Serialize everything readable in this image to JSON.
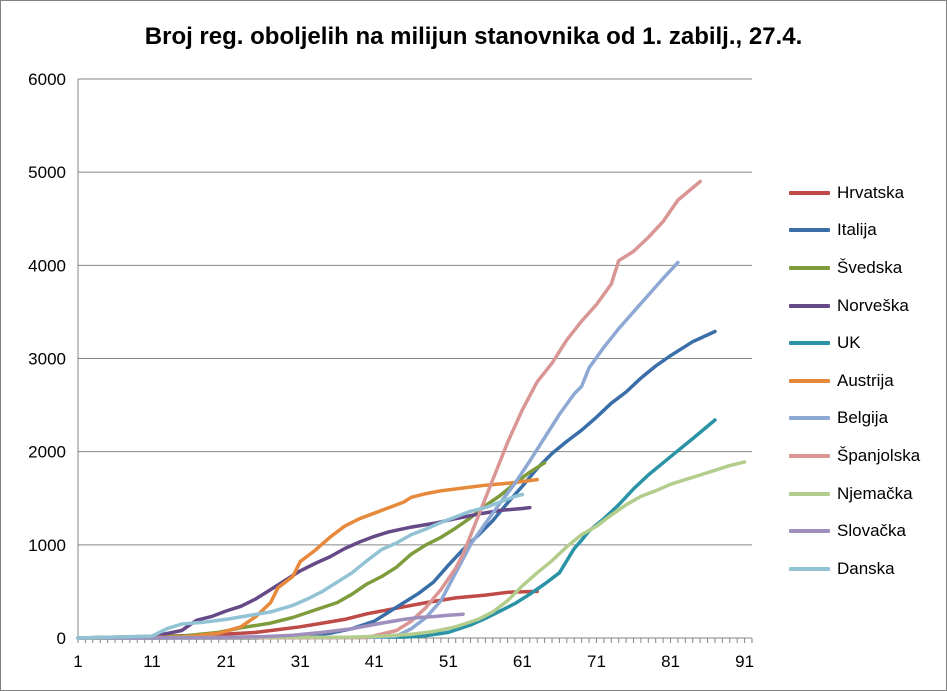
{
  "chart_data": {
    "type": "line",
    "title": "Broj reg. oboljelih na milijun stanovnika od 1. zabilj., 27.4.",
    "xlabel": "",
    "ylabel": "",
    "xlim": [
      1,
      92
    ],
    "ylim": [
      0,
      6000
    ],
    "x_ticks": [
      1,
      11,
      21,
      31,
      41,
      51,
      61,
      71,
      81,
      91
    ],
    "y_ticks": [
      0,
      1000,
      2000,
      3000,
      4000,
      5000,
      6000
    ],
    "grid": "horizontal",
    "legend_position": "right",
    "series": [
      {
        "name": "Hrvatska",
        "color": "#be4b48",
        "points": [
          [
            1,
            0
          ],
          [
            18,
            30
          ],
          [
            25,
            60
          ],
          [
            28,
            90
          ],
          [
            31,
            120
          ],
          [
            34,
            160
          ],
          [
            37,
            200
          ],
          [
            40,
            260
          ],
          [
            44,
            320
          ],
          [
            48,
            380
          ],
          [
            52,
            430
          ],
          [
            56,
            460
          ],
          [
            59,
            490
          ],
          [
            63,
            500
          ]
        ]
      },
      {
        "name": "Italija",
        "color": "#3a6ea8",
        "points": [
          [
            1,
            0
          ],
          [
            25,
            0
          ],
          [
            31,
            20
          ],
          [
            35,
            50
          ],
          [
            38,
            100
          ],
          [
            41,
            180
          ],
          [
            43,
            280
          ],
          [
            45,
            380
          ],
          [
            47,
            480
          ],
          [
            49,
            600
          ],
          [
            51,
            780
          ],
          [
            53,
            950
          ],
          [
            55,
            1100
          ],
          [
            57,
            1260
          ],
          [
            59,
            1450
          ],
          [
            61,
            1630
          ],
          [
            63,
            1820
          ],
          [
            65,
            1980
          ],
          [
            67,
            2110
          ],
          [
            69,
            2230
          ],
          [
            71,
            2370
          ],
          [
            73,
            2520
          ],
          [
            75,
            2640
          ],
          [
            77,
            2790
          ],
          [
            79,
            2920
          ],
          [
            81,
            3030
          ],
          [
            84,
            3180
          ],
          [
            87,
            3290
          ]
        ]
      },
      {
        "name": "Švedska",
        "color": "#7f9c3c",
        "points": [
          [
            1,
            0
          ],
          [
            15,
            20
          ],
          [
            20,
            60
          ],
          [
            23,
            110
          ],
          [
            27,
            160
          ],
          [
            30,
            220
          ],
          [
            33,
            300
          ],
          [
            36,
            380
          ],
          [
            38,
            470
          ],
          [
            40,
            580
          ],
          [
            42,
            660
          ],
          [
            44,
            760
          ],
          [
            46,
            900
          ],
          [
            48,
            1000
          ],
          [
            50,
            1080
          ],
          [
            52,
            1180
          ],
          [
            54,
            1290
          ],
          [
            56,
            1420
          ],
          [
            58,
            1530
          ],
          [
            60,
            1660
          ],
          [
            62,
            1780
          ],
          [
            64,
            1880
          ]
        ]
      },
      {
        "name": "Norveška",
        "color": "#664a88",
        "points": [
          [
            1,
            0
          ],
          [
            11,
            15
          ],
          [
            15,
            80
          ],
          [
            17,
            190
          ],
          [
            19,
            230
          ],
          [
            21,
            290
          ],
          [
            23,
            340
          ],
          [
            25,
            420
          ],
          [
            27,
            520
          ],
          [
            29,
            620
          ],
          [
            31,
            720
          ],
          [
            33,
            800
          ],
          [
            35,
            870
          ],
          [
            37,
            960
          ],
          [
            39,
            1030
          ],
          [
            41,
            1090
          ],
          [
            43,
            1140
          ],
          [
            46,
            1190
          ],
          [
            49,
            1230
          ],
          [
            52,
            1280
          ],
          [
            55,
            1330
          ],
          [
            58,
            1370
          ],
          [
            61,
            1390
          ],
          [
            62,
            1400
          ]
        ]
      },
      {
        "name": "UK",
        "color": "#2a93a6",
        "points": [
          [
            1,
            0
          ],
          [
            45,
            10
          ],
          [
            48,
            25
          ],
          [
            51,
            60
          ],
          [
            54,
            140
          ],
          [
            56,
            210
          ],
          [
            58,
            290
          ],
          [
            60,
            370
          ],
          [
            62,
            470
          ],
          [
            64,
            580
          ],
          [
            66,
            700
          ],
          [
            67,
            830
          ],
          [
            68,
            960
          ],
          [
            69,
            1050
          ],
          [
            70,
            1150
          ],
          [
            72,
            1280
          ],
          [
            74,
            1430
          ],
          [
            76,
            1600
          ],
          [
            78,
            1750
          ],
          [
            80,
            1880
          ],
          [
            82,
            2010
          ],
          [
            84,
            2140
          ],
          [
            87,
            2340
          ]
        ]
      },
      {
        "name": "Austrija",
        "color": "#e7893a",
        "points": [
          [
            1,
            0
          ],
          [
            15,
            10
          ],
          [
            20,
            50
          ],
          [
            23,
            120
          ],
          [
            25,
            230
          ],
          [
            27,
            380
          ],
          [
            28,
            540
          ],
          [
            30,
            660
          ],
          [
            31,
            820
          ],
          [
            33,
            940
          ],
          [
            35,
            1080
          ],
          [
            37,
            1200
          ],
          [
            39,
            1280
          ],
          [
            41,
            1340
          ],
          [
            43,
            1400
          ],
          [
            45,
            1460
          ],
          [
            46,
            1510
          ],
          [
            48,
            1550
          ],
          [
            50,
            1580
          ],
          [
            53,
            1610
          ],
          [
            56,
            1640
          ],
          [
            59,
            1660
          ],
          [
            61,
            1680
          ],
          [
            63,
            1700
          ]
        ]
      },
      {
        "name": "Belgija",
        "color": "#8ea8d4",
        "points": [
          [
            1,
            0
          ],
          [
            40,
            5
          ],
          [
            44,
            20
          ],
          [
            46,
            100
          ],
          [
            48,
            220
          ],
          [
            50,
            400
          ],
          [
            52,
            700
          ],
          [
            54,
            1000
          ],
          [
            56,
            1230
          ],
          [
            58,
            1450
          ],
          [
            60,
            1660
          ],
          [
            62,
            1900
          ],
          [
            64,
            2150
          ],
          [
            66,
            2400
          ],
          [
            68,
            2620
          ],
          [
            69,
            2700
          ],
          [
            70,
            2900
          ],
          [
            72,
            3120
          ],
          [
            74,
            3320
          ],
          [
            76,
            3500
          ],
          [
            78,
            3680
          ],
          [
            80,
            3860
          ],
          [
            82,
            4030
          ]
        ]
      },
      {
        "name": "Španjolska",
        "color": "#d99694",
        "points": [
          [
            1,
            0
          ],
          [
            40,
            5
          ],
          [
            44,
            80
          ],
          [
            46,
            180
          ],
          [
            48,
            330
          ],
          [
            50,
            520
          ],
          [
            52,
            750
          ],
          [
            53,
            900
          ],
          [
            55,
            1300
          ],
          [
            57,
            1700
          ],
          [
            59,
            2100
          ],
          [
            61,
            2450
          ],
          [
            63,
            2750
          ],
          [
            65,
            2950
          ],
          [
            67,
            3200
          ],
          [
            69,
            3400
          ],
          [
            71,
            3580
          ],
          [
            73,
            3800
          ],
          [
            74,
            4050
          ],
          [
            76,
            4150
          ],
          [
            78,
            4300
          ],
          [
            80,
            4470
          ],
          [
            82,
            4700
          ],
          [
            85,
            4900
          ]
        ]
      },
      {
        "name": "Njemačka",
        "color": "#b3cd8c",
        "points": [
          [
            1,
            0
          ],
          [
            38,
            10
          ],
          [
            42,
            20
          ],
          [
            46,
            40
          ],
          [
            49,
            70
          ],
          [
            52,
            120
          ],
          [
            55,
            200
          ],
          [
            57,
            280
          ],
          [
            59,
            400
          ],
          [
            61,
            560
          ],
          [
            63,
            700
          ],
          [
            65,
            830
          ],
          [
            67,
            980
          ],
          [
            69,
            1110
          ],
          [
            71,
            1200
          ],
          [
            73,
            1320
          ],
          [
            75,
            1430
          ],
          [
            77,
            1520
          ],
          [
            79,
            1580
          ],
          [
            81,
            1650
          ],
          [
            83,
            1700
          ],
          [
            85,
            1750
          ],
          [
            87,
            1800
          ],
          [
            89,
            1850
          ],
          [
            91,
            1890
          ]
        ]
      },
      {
        "name": "Slovačka",
        "color": "#9f8fbc",
        "points": [
          [
            1,
            0
          ],
          [
            20,
            5
          ],
          [
            26,
            15
          ],
          [
            30,
            30
          ],
          [
            34,
            60
          ],
          [
            38,
            100
          ],
          [
            42,
            160
          ],
          [
            45,
            200
          ],
          [
            47,
            220
          ],
          [
            49,
            230
          ],
          [
            51,
            245
          ],
          [
            53,
            255
          ]
        ]
      },
      {
        "name": "Danska",
        "color": "#92c3d5",
        "points": [
          [
            1,
            0
          ],
          [
            11,
            20
          ],
          [
            13,
            100
          ],
          [
            15,
            150
          ],
          [
            18,
            170
          ],
          [
            21,
            200
          ],
          [
            24,
            240
          ],
          [
            27,
            280
          ],
          [
            30,
            350
          ],
          [
            32,
            420
          ],
          [
            34,
            500
          ],
          [
            36,
            600
          ],
          [
            38,
            700
          ],
          [
            40,
            830
          ],
          [
            42,
            950
          ],
          [
            44,
            1020
          ],
          [
            46,
            1110
          ],
          [
            48,
            1170
          ],
          [
            50,
            1240
          ],
          [
            52,
            1300
          ],
          [
            54,
            1360
          ],
          [
            56,
            1400
          ],
          [
            58,
            1460
          ],
          [
            60,
            1520
          ],
          [
            61,
            1540
          ]
        ]
      }
    ]
  }
}
